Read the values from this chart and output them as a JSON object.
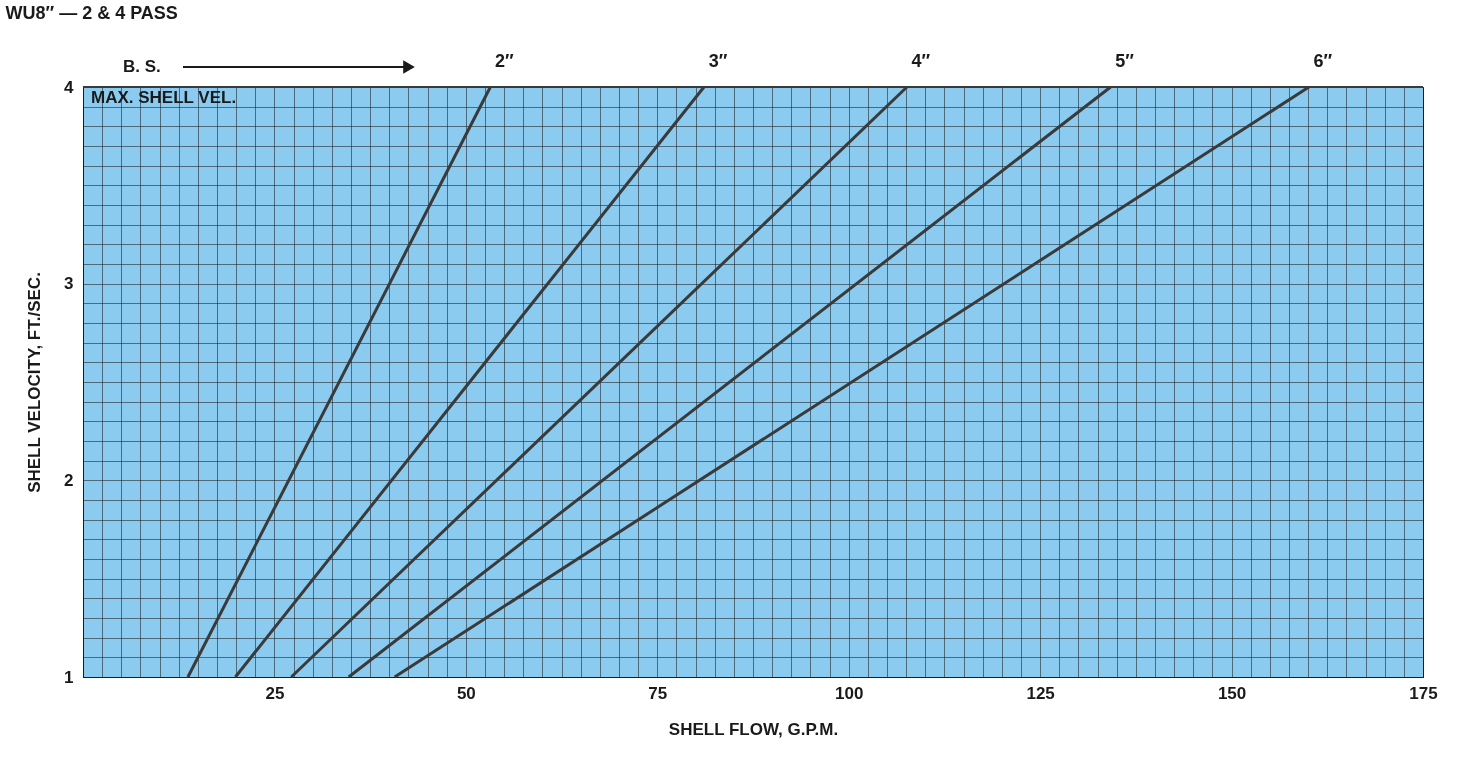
{
  "chart_data": {
    "type": "line",
    "title": "WU8″ — 2 & 4 PASS",
    "xlabel": "SHELL FLOW, G.P.M.",
    "ylabel": "SHELL VELOCITY, FT./SEC.",
    "annotations": [
      "B. S."
    ],
    "xlim": [
      0,
      175
    ],
    "xticks": [
      25,
      50,
      75,
      100,
      125,
      150,
      175
    ],
    "ylim": [
      1,
      4
    ],
    "yticks": [
      1,
      2,
      3,
      4
    ],
    "grid": true,
    "ref_lines": [
      {
        "axis": "y",
        "value": 4,
        "label": "MAX. SHELL VEL.",
        "color": "#3a3a3a"
      }
    ],
    "series": [
      {
        "name": "2″",
        "color": "#3a3a3a",
        "x": [
          13.7,
          53.2
        ],
        "values": [
          1,
          4
        ]
      },
      {
        "name": "3″",
        "color": "#3a3a3a",
        "x": [
          19.9,
          81.1
        ],
        "values": [
          1,
          4
        ]
      },
      {
        "name": "4″",
        "color": "#3a3a3a",
        "x": [
          27.2,
          107.6
        ],
        "values": [
          1,
          4
        ]
      },
      {
        "name": "5″",
        "color": "#3a3a3a",
        "x": [
          34.7,
          134.2
        ],
        "values": [
          1,
          4
        ]
      },
      {
        "name": "6″",
        "color": "#3a3a3a",
        "x": [
          40.7,
          160.1
        ],
        "values": [
          1,
          4
        ]
      }
    ]
  }
}
